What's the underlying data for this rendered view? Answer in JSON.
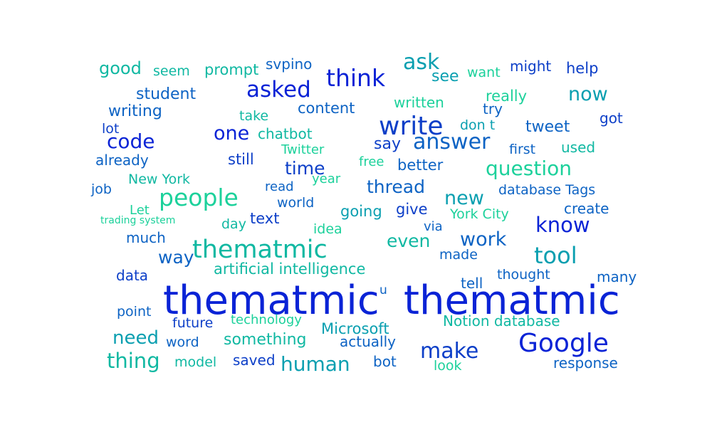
{
  "palette": {
    "dark_blue": "#0a23d6",
    "mid_blue": "#0d63c4",
    "teal": "#0a9fb0",
    "green": "#1cd19b"
  },
  "words": [
    {
      "text": "thematmic",
      "color": "#0a23d6"
    },
    {
      "text": "thematmic",
      "color": "#0a23d6"
    },
    {
      "text": "u",
      "color": "#0d63c4"
    },
    {
      "text": "Google",
      "color": "#0a23d6"
    },
    {
      "text": "thematmic",
      "color": "#10b8a2"
    },
    {
      "text": "write",
      "color": "#0d3fc8"
    },
    {
      "text": "people",
      "color": "#1cd19b"
    },
    {
      "text": "think",
      "color": "#0a23d6"
    },
    {
      "text": "asked",
      "color": "#0a23d6"
    },
    {
      "text": "answer",
      "color": "#0d63c4"
    },
    {
      "text": "question",
      "color": "#1cd19b"
    },
    {
      "text": "tool",
      "color": "#0a9fb0"
    },
    {
      "text": "know",
      "color": "#0a23d6"
    },
    {
      "text": "make",
      "color": "#0d3fc8"
    },
    {
      "text": "human",
      "color": "#0a9fb0"
    },
    {
      "text": "thing",
      "color": "#10b8a2"
    },
    {
      "text": "need",
      "color": "#0a9fb0"
    },
    {
      "text": "ask",
      "color": "#0a9fb0"
    },
    {
      "text": "code",
      "color": "#0a23d6"
    },
    {
      "text": "one",
      "color": "#0a23d6"
    },
    {
      "text": "now",
      "color": "#0a9fb0"
    },
    {
      "text": "new",
      "color": "#0a9fb0"
    },
    {
      "text": "work",
      "color": "#0d63c4"
    },
    {
      "text": "even",
      "color": "#10b8a2"
    },
    {
      "text": "way",
      "color": "#0d63c4"
    },
    {
      "text": "thread",
      "color": "#0d63c4"
    },
    {
      "text": "time",
      "color": "#0d3fc8"
    },
    {
      "text": "tweet",
      "color": "#0d63c4"
    },
    {
      "text": "artificial intelligence",
      "color": "#10b8a2"
    },
    {
      "text": "good",
      "color": "#10b8a2"
    },
    {
      "text": "student",
      "color": "#0d63c4"
    },
    {
      "text": "writing",
      "color": "#0d63c4"
    },
    {
      "text": "content",
      "color": "#0d63c4"
    },
    {
      "text": "see",
      "color": "#0a9fb0"
    },
    {
      "text": "going",
      "color": "#0a9fb0"
    },
    {
      "text": "give",
      "color": "#0d3fc8"
    },
    {
      "text": "say",
      "color": "#0d3fc8"
    },
    {
      "text": "better",
      "color": "#0d63c4"
    },
    {
      "text": "text",
      "color": "#0d3fc8"
    },
    {
      "text": "help",
      "color": "#0d3fc8"
    },
    {
      "text": "might",
      "color": "#0d3fc8"
    },
    {
      "text": "prompt",
      "color": "#10b8a2"
    },
    {
      "text": "svpino",
      "color": "#0d63c4"
    },
    {
      "text": "seem",
      "color": "#10b8a2"
    },
    {
      "text": "want",
      "color": "#1cd19b"
    },
    {
      "text": "really",
      "color": "#1cd19b"
    },
    {
      "text": "written",
      "color": "#1cd19b"
    },
    {
      "text": "try",
      "color": "#0d63c4"
    },
    {
      "text": "got",
      "color": "#0d3fc8"
    },
    {
      "text": "take",
      "color": "#10b8a2"
    },
    {
      "text": "chatbot",
      "color": "#10b8a2"
    },
    {
      "text": "don t",
      "color": "#0a9fb0"
    },
    {
      "text": "lot",
      "color": "#0d3fc8"
    },
    {
      "text": "first",
      "color": "#0d63c4"
    },
    {
      "text": "used",
      "color": "#10b8a2"
    },
    {
      "text": "already",
      "color": "#0d63c4"
    },
    {
      "text": "still",
      "color": "#0d3fc8"
    },
    {
      "text": "Twitter",
      "color": "#1cd19b"
    },
    {
      "text": "free",
      "color": "#1cd19b"
    },
    {
      "text": "New York",
      "color": "#10b8a2"
    },
    {
      "text": "year",
      "color": "#1cd19b"
    },
    {
      "text": "job",
      "color": "#0d63c4"
    },
    {
      "text": "read",
      "color": "#0d63c4"
    },
    {
      "text": "database Tags",
      "color": "#0d63c4"
    },
    {
      "text": "Let",
      "color": "#1cd19b"
    },
    {
      "text": "trading system",
      "color": "#1cd19b"
    },
    {
      "text": "world",
      "color": "#0d63c4"
    },
    {
      "text": "York City",
      "color": "#1cd19b"
    },
    {
      "text": "create",
      "color": "#0d63c4"
    },
    {
      "text": "day",
      "color": "#10b8a2"
    },
    {
      "text": "idea",
      "color": "#1cd19b"
    },
    {
      "text": "via",
      "color": "#0d63c4"
    },
    {
      "text": "much",
      "color": "#0d63c4"
    },
    {
      "text": "made",
      "color": "#0d63c4"
    },
    {
      "text": "data",
      "color": "#0d3fc8"
    },
    {
      "text": "thought",
      "color": "#0d63c4"
    },
    {
      "text": "many",
      "color": "#0d63c4"
    },
    {
      "text": "tell",
      "color": "#0d63c4"
    },
    {
      "text": "point",
      "color": "#0d63c4"
    },
    {
      "text": "technology",
      "color": "#1cd19b"
    },
    {
      "text": "future",
      "color": "#0d3fc8"
    },
    {
      "text": "Microsoft",
      "color": "#0a9fb0"
    },
    {
      "text": "Notion database",
      "color": "#10b8a2"
    },
    {
      "text": "something",
      "color": "#10b8a2"
    },
    {
      "text": "actually",
      "color": "#0d63c4"
    },
    {
      "text": "word",
      "color": "#0d63c4"
    },
    {
      "text": "model",
      "color": "#10b8a2"
    },
    {
      "text": "saved",
      "color": "#0d3fc8"
    },
    {
      "text": "bot",
      "color": "#0d63c4"
    },
    {
      "text": "look",
      "color": "#1cd19b"
    },
    {
      "text": "response",
      "color": "#0d63c4"
    }
  ]
}
